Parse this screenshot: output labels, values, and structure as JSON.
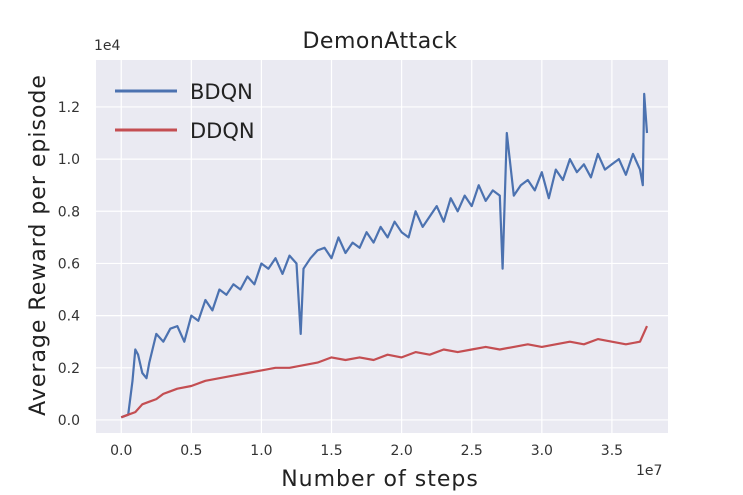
{
  "chart_data": {
    "type": "line",
    "title": "DemonAttack",
    "xlabel": "Number of steps",
    "ylabel": "Average Reward per episode",
    "x_exponent_label": "1e7",
    "y_exponent_label": "1e4",
    "xlim": [
      -0.18,
      3.9
    ],
    "ylim": [
      -0.05,
      1.38
    ],
    "x_ticks": [
      0.0,
      0.5,
      1.0,
      1.5,
      2.0,
      2.5,
      3.0,
      3.5
    ],
    "x_tick_labels": [
      "0.0",
      "0.5",
      "1.0",
      "1.5",
      "2.0",
      "2.5",
      "3.0",
      "3.5"
    ],
    "y_ticks": [
      0.0,
      0.2,
      0.4,
      0.6,
      0.8,
      1.0,
      1.2
    ],
    "y_tick_labels": [
      "0.0",
      "0.2",
      "0.4",
      "0.6",
      "0.8",
      "1.0",
      "1.2"
    ],
    "grid": true,
    "legend_position": "top-left",
    "series": [
      {
        "name": "BDQN",
        "color": "#4c72b0",
        "x": [
          0.0,
          0.05,
          0.08,
          0.1,
          0.12,
          0.15,
          0.18,
          0.2,
          0.25,
          0.3,
          0.35,
          0.4,
          0.45,
          0.5,
          0.55,
          0.6,
          0.65,
          0.7,
          0.75,
          0.8,
          0.85,
          0.9,
          0.95,
          1.0,
          1.05,
          1.1,
          1.15,
          1.2,
          1.25,
          1.28,
          1.3,
          1.35,
          1.4,
          1.45,
          1.5,
          1.55,
          1.6,
          1.65,
          1.7,
          1.75,
          1.8,
          1.85,
          1.9,
          1.95,
          2.0,
          2.05,
          2.1,
          2.15,
          2.2,
          2.25,
          2.3,
          2.35,
          2.4,
          2.45,
          2.5,
          2.55,
          2.6,
          2.65,
          2.7,
          2.72,
          2.75,
          2.8,
          2.85,
          2.9,
          2.95,
          3.0,
          3.05,
          3.1,
          3.15,
          3.2,
          3.25,
          3.3,
          3.35,
          3.4,
          3.45,
          3.5,
          3.55,
          3.6,
          3.65,
          3.7,
          3.72,
          3.73,
          3.75
        ],
        "values": [
          0.01,
          0.02,
          0.15,
          0.27,
          0.25,
          0.18,
          0.16,
          0.22,
          0.33,
          0.3,
          0.35,
          0.36,
          0.3,
          0.4,
          0.38,
          0.46,
          0.42,
          0.5,
          0.48,
          0.52,
          0.5,
          0.55,
          0.52,
          0.6,
          0.58,
          0.62,
          0.56,
          0.63,
          0.6,
          0.33,
          0.58,
          0.62,
          0.65,
          0.66,
          0.62,
          0.7,
          0.64,
          0.68,
          0.66,
          0.72,
          0.68,
          0.74,
          0.7,
          0.76,
          0.72,
          0.7,
          0.8,
          0.74,
          0.78,
          0.82,
          0.76,
          0.85,
          0.8,
          0.86,
          0.82,
          0.9,
          0.84,
          0.88,
          0.86,
          0.58,
          1.1,
          0.86,
          0.9,
          0.92,
          0.88,
          0.95,
          0.85,
          0.96,
          0.92,
          1.0,
          0.95,
          0.98,
          0.93,
          1.02,
          0.96,
          0.98,
          1.0,
          0.94,
          1.02,
          0.96,
          0.9,
          1.25,
          1.1
        ]
      },
      {
        "name": "DDQN",
        "color": "#c44e52",
        "x": [
          0.0,
          0.05,
          0.1,
          0.15,
          0.2,
          0.25,
          0.3,
          0.35,
          0.4,
          0.5,
          0.6,
          0.7,
          0.8,
          0.9,
          1.0,
          1.1,
          1.2,
          1.3,
          1.4,
          1.5,
          1.6,
          1.7,
          1.8,
          1.9,
          2.0,
          2.1,
          2.2,
          2.3,
          2.4,
          2.5,
          2.6,
          2.7,
          2.8,
          2.9,
          3.0,
          3.1,
          3.2,
          3.3,
          3.4,
          3.5,
          3.6,
          3.7,
          3.75
        ],
        "values": [
          0.01,
          0.02,
          0.03,
          0.06,
          0.07,
          0.08,
          0.1,
          0.11,
          0.12,
          0.13,
          0.15,
          0.16,
          0.17,
          0.18,
          0.19,
          0.2,
          0.2,
          0.21,
          0.22,
          0.24,
          0.23,
          0.24,
          0.23,
          0.25,
          0.24,
          0.26,
          0.25,
          0.27,
          0.26,
          0.27,
          0.28,
          0.27,
          0.28,
          0.29,
          0.28,
          0.29,
          0.3,
          0.29,
          0.31,
          0.3,
          0.29,
          0.3,
          0.36
        ]
      }
    ]
  }
}
